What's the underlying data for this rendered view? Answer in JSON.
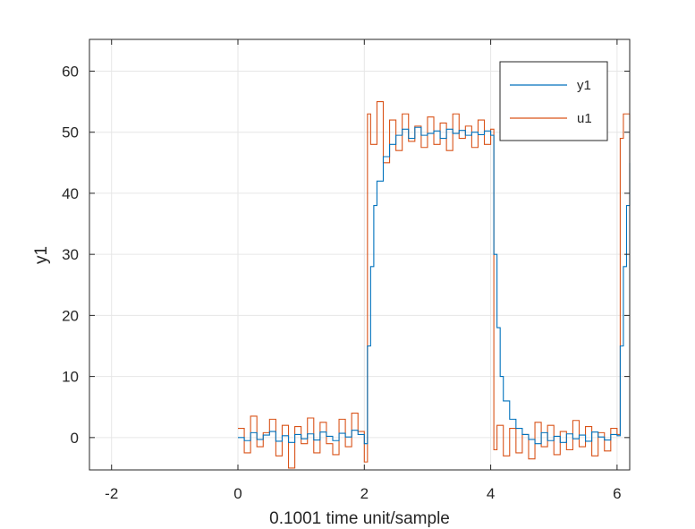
{
  "chart_data": {
    "type": "line",
    "xlabel": "0.1001 time unit/sample",
    "ylabel": "y1",
    "xlim": [
      -2.35,
      6.2
    ],
    "ylim": [
      -5.3,
      65.2
    ],
    "xticks": [
      -2,
      0,
      2,
      4,
      6
    ],
    "yticks": [
      0,
      10,
      20,
      30,
      40,
      50,
      60
    ],
    "grid": true,
    "legend_position": "top-right",
    "colors": {
      "y1": "#0072BD",
      "u1": "#D95319"
    },
    "series": [
      {
        "name": "y1",
        "description": "first-order response to u1, step-like",
        "x": [
          0.0,
          0.1,
          0.2,
          0.3,
          0.4,
          0.5,
          0.6,
          0.7,
          0.8,
          0.9,
          1.0,
          1.1,
          1.2,
          1.3,
          1.4,
          1.5,
          1.6,
          1.7,
          1.8,
          1.9,
          2.0,
          2.05,
          2.1,
          2.15,
          2.2,
          2.3,
          2.4,
          2.5,
          2.6,
          2.7,
          2.8,
          2.9,
          3.0,
          3.1,
          3.2,
          3.3,
          3.4,
          3.5,
          3.6,
          3.7,
          3.8,
          3.9,
          4.0,
          4.05,
          4.1,
          4.15,
          4.2,
          4.3,
          4.4,
          4.5,
          4.6,
          4.7,
          4.8,
          4.9,
          5.0,
          5.1,
          5.2,
          5.3,
          5.4,
          5.5,
          5.6,
          5.7,
          5.8,
          5.9,
          6.0,
          6.05,
          6.1,
          6.15,
          6.2
        ],
        "values": [
          0.0,
          -0.5,
          0.8,
          -0.3,
          0.4,
          1.0,
          -0.6,
          0.3,
          -0.8,
          0.5,
          -0.2,
          0.6,
          -0.4,
          0.9,
          0.2,
          -0.5,
          0.7,
          0.1,
          1.2,
          0.5,
          -1.0,
          15.0,
          28.0,
          38.0,
          42.0,
          46.0,
          48.0,
          49.5,
          50.5,
          49.0,
          50.8,
          49.5,
          49.8,
          50.2,
          49.0,
          50.5,
          49.8,
          50.3,
          49.5,
          50.0,
          49.6,
          50.2,
          49.5,
          30.0,
          18.0,
          10.0,
          6.0,
          3.0,
          1.5,
          0.5,
          -0.3,
          -1.0,
          0.8,
          -0.5,
          0.2,
          -0.8,
          0.6,
          -0.2,
          0.4,
          -0.6,
          0.9,
          0.1,
          -0.4,
          0.5,
          0.3,
          15.0,
          28.0,
          38.0,
          45.0
        ]
      },
      {
        "name": "u1",
        "description": "noisy square-wave input, 0 to 50",
        "x": [
          0.0,
          0.1,
          0.2,
          0.3,
          0.4,
          0.5,
          0.6,
          0.7,
          0.8,
          0.9,
          1.0,
          1.1,
          1.2,
          1.3,
          1.4,
          1.5,
          1.6,
          1.7,
          1.8,
          1.9,
          2.0,
          2.05,
          2.1,
          2.2,
          2.3,
          2.4,
          2.5,
          2.6,
          2.7,
          2.8,
          2.9,
          3.0,
          3.1,
          3.2,
          3.3,
          3.4,
          3.5,
          3.6,
          3.7,
          3.8,
          3.9,
          4.0,
          4.05,
          4.1,
          4.2,
          4.3,
          4.4,
          4.5,
          4.6,
          4.7,
          4.8,
          4.9,
          5.0,
          5.1,
          5.2,
          5.3,
          5.4,
          5.5,
          5.6,
          5.7,
          5.8,
          5.9,
          6.0,
          6.05,
          6.1,
          6.2
        ],
        "values": [
          1.5,
          -2.5,
          3.5,
          -1.5,
          0.8,
          3.0,
          -3.0,
          2.0,
          -5.0,
          1.8,
          -1.0,
          3.2,
          -2.5,
          2.5,
          -1.0,
          -2.8,
          3.0,
          -1.5,
          4.0,
          1.0,
          -4.0,
          53.0,
          48.0,
          55.0,
          45.0,
          52.0,
          47.0,
          53.0,
          48.5,
          51.0,
          47.5,
          52.5,
          48.0,
          51.5,
          47.0,
          53.0,
          49.0,
          51.0,
          47.5,
          52.0,
          48.0,
          50.5,
          -2.0,
          2.0,
          -3.0,
          1.5,
          -2.5,
          0.5,
          -3.5,
          2.5,
          -1.5,
          2.0,
          -2.8,
          1.0,
          -2.0,
          2.8,
          -1.5,
          1.8,
          -3.0,
          0.8,
          -2.2,
          1.5,
          0.5,
          49.0,
          53.0,
          52.0
        ]
      }
    ]
  }
}
